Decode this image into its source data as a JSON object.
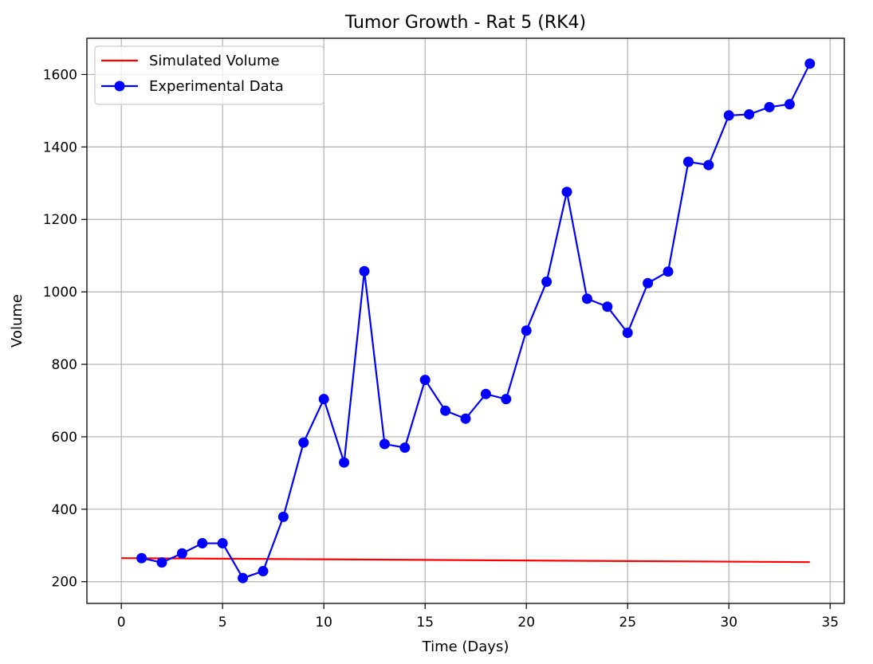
{
  "chart_data": {
    "type": "line",
    "title": "Tumor Growth - Rat 5 (RK4)",
    "xlabel": "Time (Days)",
    "ylabel": "Volume",
    "xlim": [
      -1.7,
      35.7
    ],
    "ylim": [
      140,
      1700
    ],
    "xticks": [
      0,
      5,
      10,
      15,
      20,
      25,
      30,
      35
    ],
    "yticks": [
      200,
      400,
      600,
      800,
      1000,
      1200,
      1400,
      1600
    ],
    "grid": true,
    "legend_position": "top-left",
    "series": [
      {
        "name": "Simulated Volume",
        "color": "#ff0000",
        "marker": "none",
        "x": [
          0,
          34
        ],
        "y": [
          265,
          254
        ]
      },
      {
        "name": "Experimental Data",
        "color": "#0000ff",
        "marker": "circle",
        "x": [
          1,
          2,
          3,
          4,
          5,
          6,
          7,
          8,
          9,
          10,
          11,
          12,
          13,
          14,
          15,
          16,
          17,
          18,
          19,
          20,
          21,
          22,
          23,
          24,
          25,
          26,
          27,
          28,
          29,
          30,
          31,
          32,
          33,
          34
        ],
        "y": [
          265,
          253,
          278,
          306,
          306,
          210,
          229,
          379,
          584,
          704,
          529,
          1057,
          580,
          570,
          757,
          672,
          650,
          718,
          704,
          893,
          1028,
          1276,
          981,
          959,
          887,
          1024,
          1056,
          1359,
          1350,
          1487,
          1490,
          1510,
          1518,
          1630
        ]
      }
    ]
  }
}
